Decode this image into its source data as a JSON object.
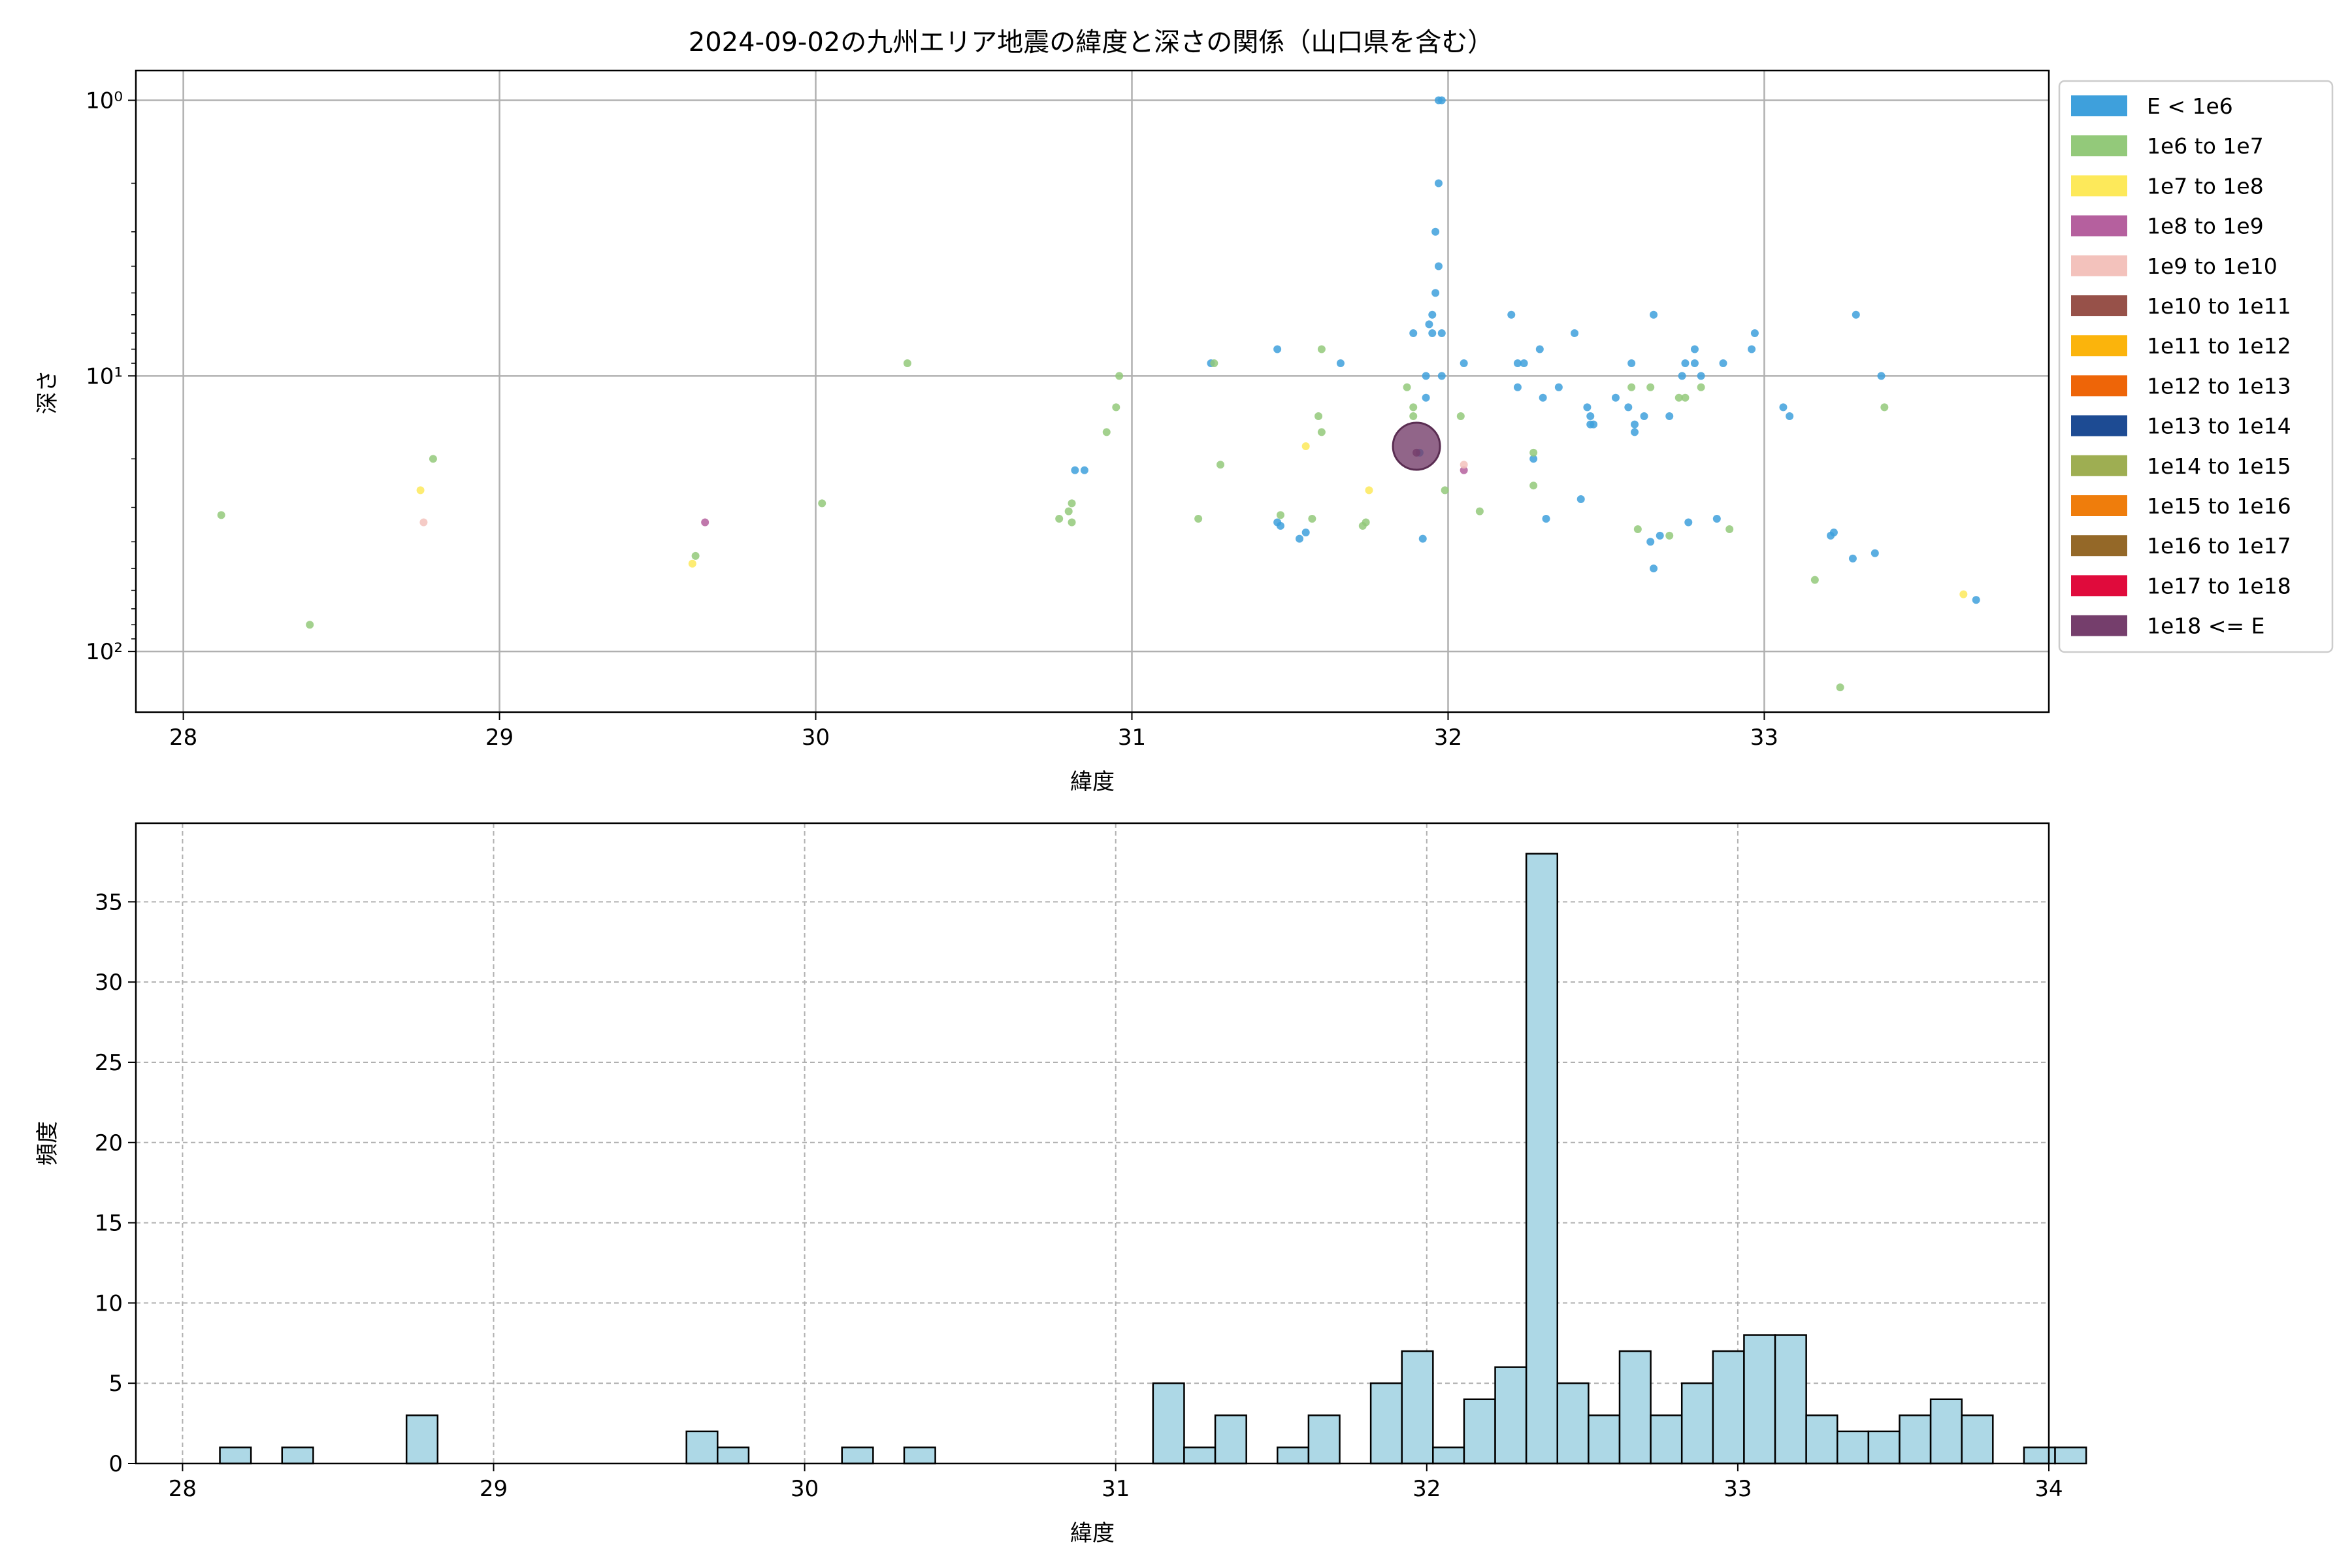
{
  "chart_data": [
    {
      "type": "scatter",
      "title": "2024-09-02の九州エリア地震の緯度と深さの関係（山口県を含む）",
      "xlabel": "緯度",
      "ylabel": "深さ",
      "xlim": [
        27.85,
        33.9
      ],
      "ylim": [
        166,
        0.78
      ],
      "y_scale": "log",
      "y_inverted": true,
      "grid": true,
      "xticks": [
        28,
        29,
        30,
        31,
        32,
        33
      ],
      "yticks": [
        1,
        10,
        100
      ],
      "ytick_labels": [
        "10⁰",
        "10¹",
        "10²"
      ],
      "legend_position": "outside-right",
      "legend": [
        {
          "label": "E < 1e6",
          "color": "#3ea0dc"
        },
        {
          "label": "1e6 to 1e7",
          "color": "#93c97a"
        },
        {
          "label": "1e7 to 1e8",
          "color": "#fde95a"
        },
        {
          "label": "1e8 to 1e9",
          "color": "#b5609e"
        },
        {
          "label": "1e9 to 1e10",
          "color": "#f3c2bc"
        },
        {
          "label": "1e10 to 1e11",
          "color": "#975149"
        },
        {
          "label": "1e11 to 1e12",
          "color": "#fbb40c"
        },
        {
          "label": "1e12 to 1e13",
          "color": "#ee6508"
        },
        {
          "label": "1e13 to 1e14",
          "color": "#1d4b93"
        },
        {
          "label": "1e14 to 1e15",
          "color": "#9eae52"
        },
        {
          "label": "1e15 to 1e16",
          "color": "#ef7d0c"
        },
        {
          "label": "1e16 to 1e17",
          "color": "#946828"
        },
        {
          "label": "1e17 to 1e18",
          "color": "#e00b3c"
        },
        {
          "label": "1e18 <= E",
          "color": "#753e6c"
        }
      ],
      "points": [
        {
          "x": 31.97,
          "y": 1,
          "c": 0
        },
        {
          "x": 31.98,
          "y": 1,
          "c": 0
        },
        {
          "x": 31.97,
          "y": 2,
          "c": 0
        },
        {
          "x": 31.96,
          "y": 3,
          "c": 0
        },
        {
          "x": 31.97,
          "y": 4,
          "c": 0
        },
        {
          "x": 31.96,
          "y": 5,
          "c": 0
        },
        {
          "x": 31.95,
          "y": 6,
          "c": 0
        },
        {
          "x": 31.94,
          "y": 6.5,
          "c": 0
        },
        {
          "x": 31.89,
          "y": 7,
          "c": 0
        },
        {
          "x": 31.95,
          "y": 7,
          "c": 0
        },
        {
          "x": 31.98,
          "y": 7,
          "c": 0
        },
        {
          "x": 32.2,
          "y": 6,
          "c": 0
        },
        {
          "x": 32.65,
          "y": 6,
          "c": 0
        },
        {
          "x": 33.29,
          "y": 6,
          "c": 0
        },
        {
          "x": 32.4,
          "y": 7,
          "c": 0
        },
        {
          "x": 32.97,
          "y": 7,
          "c": 0
        },
        {
          "x": 31.46,
          "y": 8,
          "c": 0
        },
        {
          "x": 32.29,
          "y": 8,
          "c": 0
        },
        {
          "x": 32.78,
          "y": 8,
          "c": 0
        },
        {
          "x": 32.96,
          "y": 8,
          "c": 0
        },
        {
          "x": 31.25,
          "y": 9,
          "c": 0
        },
        {
          "x": 31.66,
          "y": 9,
          "c": 0
        },
        {
          "x": 32.05,
          "y": 9,
          "c": 0
        },
        {
          "x": 32.22,
          "y": 9,
          "c": 0
        },
        {
          "x": 32.24,
          "y": 9,
          "c": 0
        },
        {
          "x": 32.58,
          "y": 9,
          "c": 0
        },
        {
          "x": 32.75,
          "y": 9,
          "c": 0
        },
        {
          "x": 32.78,
          "y": 9,
          "c": 0
        },
        {
          "x": 32.87,
          "y": 9,
          "c": 0
        },
        {
          "x": 31.93,
          "y": 10,
          "c": 0
        },
        {
          "x": 31.98,
          "y": 10,
          "c": 0
        },
        {
          "x": 32.74,
          "y": 10,
          "c": 0
        },
        {
          "x": 32.8,
          "y": 10,
          "c": 0
        },
        {
          "x": 33.37,
          "y": 10,
          "c": 0
        },
        {
          "x": 32.22,
          "y": 11,
          "c": 0
        },
        {
          "x": 32.35,
          "y": 11,
          "c": 0
        },
        {
          "x": 31.93,
          "y": 12,
          "c": 0
        },
        {
          "x": 32.3,
          "y": 12,
          "c": 0
        },
        {
          "x": 32.53,
          "y": 12,
          "c": 0
        },
        {
          "x": 32.44,
          "y": 13,
          "c": 0
        },
        {
          "x": 32.57,
          "y": 13,
          "c": 0
        },
        {
          "x": 33.06,
          "y": 13,
          "c": 0
        },
        {
          "x": 32.45,
          "y": 14,
          "c": 0
        },
        {
          "x": 32.62,
          "y": 14,
          "c": 0
        },
        {
          "x": 32.7,
          "y": 14,
          "c": 0
        },
        {
          "x": 33.08,
          "y": 14,
          "c": 0
        },
        {
          "x": 32.45,
          "y": 15,
          "c": 0
        },
        {
          "x": 32.46,
          "y": 15,
          "c": 0
        },
        {
          "x": 32.59,
          "y": 15,
          "c": 0
        },
        {
          "x": 32.59,
          "y": 16,
          "c": 0
        },
        {
          "x": 31.91,
          "y": 19,
          "c": 0
        },
        {
          "x": 32.27,
          "y": 20,
          "c": 0
        },
        {
          "x": 30.82,
          "y": 22,
          "c": 0
        },
        {
          "x": 30.85,
          "y": 22,
          "c": 0
        },
        {
          "x": 32.42,
          "y": 28,
          "c": 0
        },
        {
          "x": 32.31,
          "y": 33,
          "c": 0
        },
        {
          "x": 32.76,
          "y": 34,
          "c": 0
        },
        {
          "x": 32.85,
          "y": 33,
          "c": 0
        },
        {
          "x": 31.46,
          "y": 34,
          "c": 0
        },
        {
          "x": 31.47,
          "y": 35,
          "c": 0
        },
        {
          "x": 31.55,
          "y": 37,
          "c": 0
        },
        {
          "x": 31.53,
          "y": 39,
          "c": 0
        },
        {
          "x": 31.92,
          "y": 39,
          "c": 0
        },
        {
          "x": 32.67,
          "y": 38,
          "c": 0
        },
        {
          "x": 32.64,
          "y": 40,
          "c": 0
        },
        {
          "x": 33.21,
          "y": 38,
          "c": 0
        },
        {
          "x": 33.22,
          "y": 37,
          "c": 0
        },
        {
          "x": 33.28,
          "y": 46,
          "c": 0
        },
        {
          "x": 33.35,
          "y": 44,
          "c": 0
        },
        {
          "x": 32.65,
          "y": 50,
          "c": 0
        },
        {
          "x": 33.67,
          "y": 65,
          "c": 0
        },
        {
          "x": 31.26,
          "y": 9,
          "c": 1
        },
        {
          "x": 31.6,
          "y": 8,
          "c": 1
        },
        {
          "x": 30.29,
          "y": 9,
          "c": 1
        },
        {
          "x": 30.96,
          "y": 10,
          "c": 1
        },
        {
          "x": 31.87,
          "y": 11,
          "c": 1
        },
        {
          "x": 32.58,
          "y": 11,
          "c": 1
        },
        {
          "x": 32.64,
          "y": 11,
          "c": 1
        },
        {
          "x": 32.8,
          "y": 11,
          "c": 1
        },
        {
          "x": 30.95,
          "y": 13,
          "c": 1
        },
        {
          "x": 31.89,
          "y": 13,
          "c": 1
        },
        {
          "x": 32.75,
          "y": 12,
          "c": 1
        },
        {
          "x": 33.38,
          "y": 13,
          "c": 1
        },
        {
          "x": 31.59,
          "y": 14,
          "c": 1
        },
        {
          "x": 31.89,
          "y": 14,
          "c": 1
        },
        {
          "x": 32.04,
          "y": 14,
          "c": 1
        },
        {
          "x": 32.73,
          "y": 12,
          "c": 1
        },
        {
          "x": 30.92,
          "y": 16,
          "c": 1
        },
        {
          "x": 31.6,
          "y": 16,
          "c": 1
        },
        {
          "x": 28.79,
          "y": 20,
          "c": 1
        },
        {
          "x": 32.27,
          "y": 19,
          "c": 1
        },
        {
          "x": 31.28,
          "y": 21,
          "c": 1
        },
        {
          "x": 32.27,
          "y": 25,
          "c": 1
        },
        {
          "x": 31.99,
          "y": 26,
          "c": 1
        },
        {
          "x": 30.02,
          "y": 29,
          "c": 1
        },
        {
          "x": 30.81,
          "y": 29,
          "c": 1
        },
        {
          "x": 30.8,
          "y": 31,
          "c": 1
        },
        {
          "x": 32.1,
          "y": 31,
          "c": 1
        },
        {
          "x": 28.12,
          "y": 32,
          "c": 1
        },
        {
          "x": 30.77,
          "y": 33,
          "c": 1
        },
        {
          "x": 30.81,
          "y": 34,
          "c": 1
        },
        {
          "x": 31.21,
          "y": 33,
          "c": 1
        },
        {
          "x": 31.47,
          "y": 32,
          "c": 1
        },
        {
          "x": 31.57,
          "y": 33,
          "c": 1
        },
        {
          "x": 31.74,
          "y": 34,
          "c": 1
        },
        {
          "x": 31.73,
          "y": 35,
          "c": 1
        },
        {
          "x": 32.6,
          "y": 36,
          "c": 1
        },
        {
          "x": 32.7,
          "y": 38,
          "c": 1
        },
        {
          "x": 32.89,
          "y": 36,
          "c": 1
        },
        {
          "x": 29.62,
          "y": 45,
          "c": 1
        },
        {
          "x": 33.16,
          "y": 55,
          "c": 1
        },
        {
          "x": 28.4,
          "y": 80,
          "c": 1
        },
        {
          "x": 33.24,
          "y": 135,
          "c": 1
        },
        {
          "x": 31.55,
          "y": 18,
          "c": 2
        },
        {
          "x": 28.75,
          "y": 26,
          "c": 2
        },
        {
          "x": 31.75,
          "y": 26,
          "c": 2
        },
        {
          "x": 29.61,
          "y": 48,
          "c": 2
        },
        {
          "x": 33.63,
          "y": 62,
          "c": 2
        },
        {
          "x": 29.65,
          "y": 34,
          "c": 3
        },
        {
          "x": 32.05,
          "y": 22,
          "c": 3
        },
        {
          "x": 28.76,
          "y": 34,
          "c": 4
        },
        {
          "x": 32.05,
          "y": 21,
          "c": 4
        },
        {
          "x": 31.9,
          "y": 18,
          "c": 13,
          "size": 36
        },
        {
          "x": 31.9,
          "y": 19,
          "c": 13
        }
      ]
    },
    {
      "type": "bar",
      "subtype": "histogram",
      "xlabel": "緯度",
      "ylabel": "頻度",
      "xlim": [
        27.85,
        34.0
      ],
      "ylim": [
        0,
        39.9
      ],
      "xticks": [
        28,
        29,
        30,
        31,
        32,
        33,
        34
      ],
      "yticks": [
        0,
        5,
        10,
        15,
        20,
        25,
        30,
        35
      ],
      "grid": true,
      "bar_color": "#add8e6",
      "edge_color": "#000000",
      "bin_start": 28.12,
      "bin_width": 0.1,
      "values": [
        1,
        0,
        1,
        0,
        0,
        0,
        3,
        0,
        0,
        0,
        0,
        0,
        0,
        0,
        0,
        2,
        1,
        0,
        0,
        0,
        1,
        0,
        1,
        0,
        0,
        0,
        0,
        0,
        0,
        0,
        5,
        1,
        3,
        0,
        1,
        3,
        0,
        5,
        7,
        1,
        4,
        6,
        38,
        5,
        3,
        7,
        3,
        5,
        7,
        8,
        8,
        3,
        2,
        2,
        3,
        4,
        3,
        0,
        1,
        1
      ]
    }
  ]
}
